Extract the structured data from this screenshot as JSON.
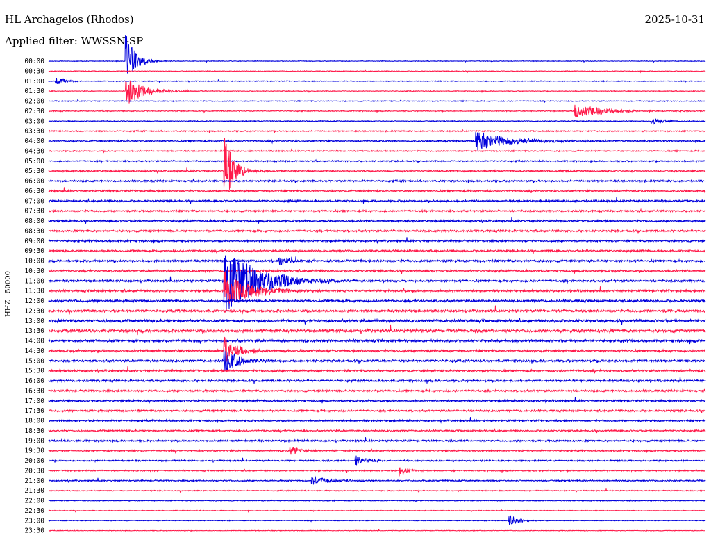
{
  "header": {
    "station": "HL Archagelos (Rhodos)",
    "date": "2025-10-31",
    "filter": "Applied filter: WWSSN-SP",
    "channel_label": "HHZ - 50000"
  },
  "colors": {
    "trace_a": "#0000dd",
    "trace_b": "#ff1a4a"
  },
  "chart_data": {
    "type": "line",
    "title": "HL Archagelos (Rhodos)",
    "ylabel": "HHZ - 50000",
    "row_labels": [
      "00:00",
      "00:30",
      "01:00",
      "01:30",
      "02:00",
      "02:30",
      "03:00",
      "03:30",
      "04:00",
      "04:30",
      "05:00",
      "05:30",
      "06:00",
      "06:30",
      "07:00",
      "07:30",
      "08:00",
      "08:30",
      "09:00",
      "09:30",
      "10:00",
      "10:30",
      "11:00",
      "11:30",
      "12:00",
      "12:30",
      "13:00",
      "13:30",
      "14:00",
      "14:30",
      "15:00",
      "15:30",
      "16:00",
      "16:30",
      "17:00",
      "17:30",
      "18:00",
      "18:30",
      "19:00",
      "19:30",
      "20:00",
      "20:30",
      "21:00",
      "21:30",
      "22:00",
      "22:30",
      "23:00",
      "23:30"
    ],
    "row_noise_level": [
      0.12,
      0.14,
      0.15,
      0.14,
      0.16,
      0.18,
      0.17,
      0.22,
      0.28,
      0.22,
      0.24,
      0.3,
      0.32,
      0.34,
      0.35,
      0.33,
      0.36,
      0.38,
      0.34,
      0.36,
      0.4,
      0.38,
      0.4,
      0.4,
      0.42,
      0.48,
      0.55,
      0.58,
      0.45,
      0.42,
      0.44,
      0.4,
      0.38,
      0.36,
      0.34,
      0.36,
      0.33,
      0.3,
      0.32,
      0.28,
      0.26,
      0.24,
      0.25,
      0.18,
      0.16,
      0.14,
      0.14,
      0.12
    ],
    "events": [
      {
        "row": 0,
        "minute": 3.5,
        "amp": 45,
        "dur": 0.4
      },
      {
        "row": 2,
        "minute": 0.3,
        "amp": 8,
        "dur": 0.4
      },
      {
        "row": 3,
        "minute": 3.5,
        "amp": 22,
        "dur": 0.8
      },
      {
        "row": 5,
        "minute": 24.0,
        "amp": 10,
        "dur": 1.2
      },
      {
        "row": 8,
        "minute": 19.5,
        "amp": 14,
        "dur": 1.5
      },
      {
        "row": 6,
        "minute": 27.5,
        "amp": 6,
        "dur": 0.5
      },
      {
        "row": 11,
        "minute": 8.0,
        "amp": 55,
        "dur": 0.4
      },
      {
        "row": 22,
        "minute": 8.0,
        "amp": 48,
        "dur": 1.6
      },
      {
        "row": 23,
        "minute": 8.0,
        "amp": 30,
        "dur": 1.2
      },
      {
        "row": 29,
        "minute": 8.0,
        "amp": 22,
        "dur": 0.6
      },
      {
        "row": 30,
        "minute": 8.0,
        "amp": 20,
        "dur": 0.6
      },
      {
        "row": 20,
        "minute": 10.5,
        "amp": 6,
        "dur": 0.6
      },
      {
        "row": 39,
        "minute": 11.0,
        "amp": 8,
        "dur": 0.4
      },
      {
        "row": 40,
        "minute": 14.0,
        "amp": 8,
        "dur": 0.5
      },
      {
        "row": 42,
        "minute": 12.0,
        "amp": 6,
        "dur": 1.0
      },
      {
        "row": 41,
        "minute": 16.0,
        "amp": 8,
        "dur": 0.4
      },
      {
        "row": 46,
        "minute": 21.0,
        "amp": 10,
        "dur": 0.4
      }
    ]
  }
}
